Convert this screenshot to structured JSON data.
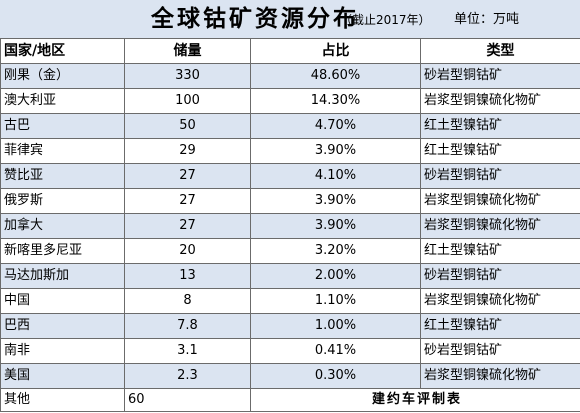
{
  "title": "全球钴矿资源分布",
  "subtitle": "（截止2017年）",
  "unit": "单位：万吨",
  "headers": [
    "国家/地区",
    "储量",
    "占比",
    "类型"
  ],
  "rows": [
    {
      "country": "刚果（金）",
      "reserve": "330",
      "share": "48.60%",
      "type": "砂岩型铜钴矿"
    },
    {
      "country": "澳大利亚",
      "reserve": "100",
      "share": "14.30%",
      "type": "岩浆型铜镍硫化物矿"
    },
    {
      "country": "古巴",
      "reserve": "50",
      "share": "4.70%",
      "type": "红土型镍钴矿"
    },
    {
      "country": "菲律宾",
      "reserve": "29",
      "share": "3.90%",
      "type": "红土型镍钴矿"
    },
    {
      "country": "赞比亚",
      "reserve": "27",
      "share": "4.10%",
      "type": "砂岩型铜钴矿"
    },
    {
      "country": "俄罗斯",
      "reserve": "27",
      "share": "3.90%",
      "type": "岩浆型铜镍硫化物矿"
    },
    {
      "country": "加拿大",
      "reserve": "27",
      "share": "3.90%",
      "type": "岩浆型铜镍硫化物矿"
    },
    {
      "country": "新喀里多尼亚",
      "reserve": "20",
      "share": "3.20%",
      "type": "红土型镍钴矿"
    },
    {
      "country": "马达加斯加",
      "reserve": "13",
      "share": "2.00%",
      "type": "砂岩型铜钴矿"
    },
    {
      "country": "中国",
      "reserve": "8",
      "share": "1.10%",
      "type": "岩浆型铜镍硫化物矿"
    },
    {
      "country": "巴西",
      "reserve": "7.8",
      "share": "1.00%",
      "type": "红土型镍钴矿"
    },
    {
      "country": "南非",
      "reserve": "3.1",
      "share": "0.41%",
      "type": "砂岩型铜钴矿"
    },
    {
      "country": "美国",
      "reserve": "2.3",
      "share": "0.30%",
      "type": "岩浆型铜镍硫化物矿"
    }
  ],
  "other": {
    "country": "其他",
    "reserve": "60"
  },
  "credit": "建约车评制表"
}
